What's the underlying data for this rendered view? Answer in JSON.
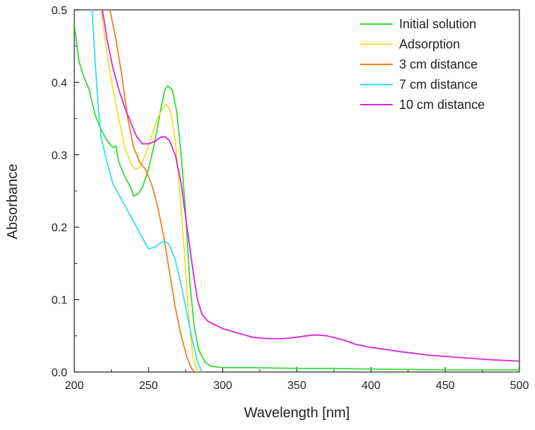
{
  "chart_data": {
    "type": "line",
    "title": "",
    "xlabel": "Wavelength [nm]",
    "ylabel": "Absorbance",
    "xlim": [
      200,
      500
    ],
    "ylim": [
      0,
      0.5
    ],
    "x_ticks": [
      200,
      250,
      300,
      350,
      400,
      450,
      500
    ],
    "x_tick_labels": [
      "200",
      "250",
      "300",
      "350",
      "400",
      "450",
      "500"
    ],
    "y_ticks": [
      0,
      0.1,
      0.2,
      0.3,
      0.4,
      0.5
    ],
    "y_tick_labels": [
      "0.0",
      "0.1",
      "0.2",
      "0.3",
      "0.4",
      "0.5"
    ],
    "grid": false,
    "legend_position": "top-right",
    "series": [
      {
        "name": "Initial solution",
        "color": "#33dd33",
        "points": [
          [
            200,
            0.48
          ],
          [
            203,
            0.43
          ],
          [
            206,
            0.41
          ],
          [
            210,
            0.39
          ],
          [
            214,
            0.355
          ],
          [
            218,
            0.335
          ],
          [
            222,
            0.32
          ],
          [
            226,
            0.31
          ],
          [
            228,
            0.312
          ],
          [
            230,
            0.29
          ],
          [
            234,
            0.27
          ],
          [
            238,
            0.255
          ],
          [
            240,
            0.243
          ],
          [
            243,
            0.246
          ],
          [
            246,
            0.255
          ],
          [
            250,
            0.28
          ],
          [
            254,
            0.315
          ],
          [
            258,
            0.36
          ],
          [
            261,
            0.39
          ],
          [
            263,
            0.395
          ],
          [
            266,
            0.39
          ],
          [
            269,
            0.36
          ],
          [
            272,
            0.3
          ],
          [
            275,
            0.22
          ],
          [
            278,
            0.12
          ],
          [
            281,
            0.06
          ],
          [
            284,
            0.03
          ],
          [
            288,
            0.014
          ],
          [
            292,
            0.008
          ],
          [
            300,
            0.006
          ],
          [
            320,
            0.006
          ],
          [
            350,
            0.005
          ],
          [
            370,
            0.005
          ],
          [
            400,
            0.004
          ],
          [
            450,
            0.003
          ],
          [
            500,
            0.003
          ]
        ]
      },
      {
        "name": "Adsorption",
        "color": "#f0e030",
        "points": [
          [
            218,
            0.5
          ],
          [
            222,
            0.44
          ],
          [
            226,
            0.39
          ],
          [
            230,
            0.35
          ],
          [
            234,
            0.31
          ],
          [
            238,
            0.288
          ],
          [
            241,
            0.28
          ],
          [
            244,
            0.282
          ],
          [
            248,
            0.3
          ],
          [
            252,
            0.325
          ],
          [
            256,
            0.35
          ],
          [
            260,
            0.365
          ],
          [
            262,
            0.37
          ],
          [
            265,
            0.36
          ],
          [
            268,
            0.32
          ],
          [
            271,
            0.25
          ],
          [
            274,
            0.17
          ],
          [
            277,
            0.08
          ],
          [
            280,
            0.02
          ],
          [
            283,
            0.0
          ]
        ]
      },
      {
        "name": "3 cm distance",
        "color": "#f08020",
        "points": [
          [
            224,
            0.5
          ],
          [
            228,
            0.46
          ],
          [
            232,
            0.41
          ],
          [
            236,
            0.35
          ],
          [
            240,
            0.31
          ],
          [
            244,
            0.29
          ],
          [
            248,
            0.28
          ],
          [
            252,
            0.26
          ],
          [
            256,
            0.23
          ],
          [
            260,
            0.19
          ],
          [
            264,
            0.14
          ],
          [
            268,
            0.09
          ],
          [
            272,
            0.05
          ],
          [
            276,
            0.02
          ],
          [
            279,
            0.005
          ],
          [
            281,
            0.0
          ]
        ]
      },
      {
        "name": "7 cm distance",
        "color": "#33e0e8",
        "points": [
          [
            212,
            0.5
          ],
          [
            214,
            0.43
          ],
          [
            216,
            0.37
          ],
          [
            218,
            0.325
          ],
          [
            222,
            0.29
          ],
          [
            226,
            0.26
          ],
          [
            230,
            0.245
          ],
          [
            234,
            0.23
          ],
          [
            238,
            0.215
          ],
          [
            242,
            0.2
          ],
          [
            246,
            0.185
          ],
          [
            250,
            0.17
          ],
          [
            254,
            0.172
          ],
          [
            258,
            0.178
          ],
          [
            261,
            0.181
          ],
          [
            264,
            0.176
          ],
          [
            268,
            0.155
          ],
          [
            272,
            0.12
          ],
          [
            276,
            0.08
          ],
          [
            280,
            0.04
          ],
          [
            283,
            0.015
          ],
          [
            286,
            0.0
          ]
        ]
      },
      {
        "name": "10 cm distance",
        "color": "#dd22dd",
        "points": [
          [
            219,
            0.5
          ],
          [
            222,
            0.46
          ],
          [
            226,
            0.42
          ],
          [
            230,
            0.39
          ],
          [
            234,
            0.365
          ],
          [
            238,
            0.345
          ],
          [
            242,
            0.325
          ],
          [
            246,
            0.315
          ],
          [
            250,
            0.315
          ],
          [
            254,
            0.318
          ],
          [
            258,
            0.324
          ],
          [
            261,
            0.325
          ],
          [
            264,
            0.32
          ],
          [
            268,
            0.3
          ],
          [
            272,
            0.26
          ],
          [
            276,
            0.2
          ],
          [
            280,
            0.14
          ],
          [
            283,
            0.1
          ],
          [
            286,
            0.08
          ],
          [
            290,
            0.07
          ],
          [
            295,
            0.065
          ],
          [
            300,
            0.06
          ],
          [
            310,
            0.054
          ],
          [
            320,
            0.048
          ],
          [
            330,
            0.046
          ],
          [
            340,
            0.046
          ],
          [
            350,
            0.048
          ],
          [
            360,
            0.051
          ],
          [
            365,
            0.051
          ],
          [
            370,
            0.05
          ],
          [
            380,
            0.045
          ],
          [
            390,
            0.038
          ],
          [
            400,
            0.034
          ],
          [
            420,
            0.028
          ],
          [
            440,
            0.023
          ],
          [
            460,
            0.02
          ],
          [
            480,
            0.017
          ],
          [
            500,
            0.015
          ]
        ]
      }
    ]
  }
}
